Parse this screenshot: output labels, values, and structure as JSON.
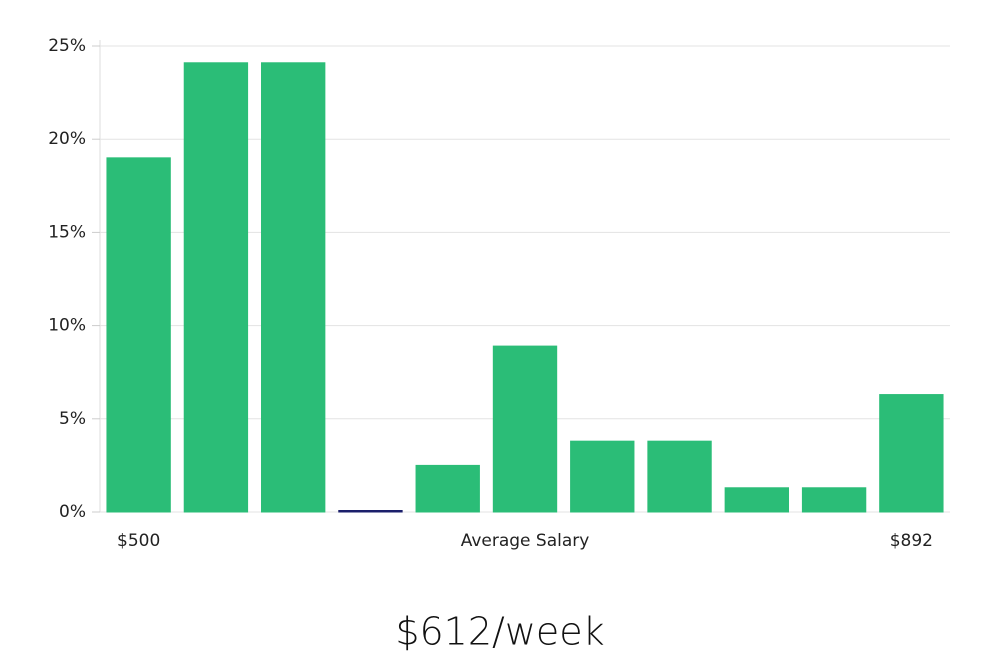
{
  "chart_data": {
    "type": "bar",
    "categories": [
      "$500",
      null,
      null,
      null,
      null,
      null,
      null,
      null,
      null,
      null,
      "$892"
    ],
    "values": [
      19,
      24.1,
      24.1,
      0,
      2.5,
      8.9,
      3.8,
      3.8,
      1.3,
      1.3,
      6.3
    ],
    "colors": [
      "#2bbd77",
      "#2bbd77",
      "#2bbd77",
      "#1b1f6b",
      "#2bbd77",
      "#2bbd77",
      "#2bbd77",
      "#2bbd77",
      "#2bbd77",
      "#2bbd77",
      "#2bbd77"
    ],
    "x_label": "Average Salary",
    "caption": "$612/week",
    "ylim": [
      0,
      25
    ],
    "yticks": [
      {
        "value": 0,
        "label": "0%"
      },
      {
        "value": 5,
        "label": "5%"
      },
      {
        "value": 10,
        "label": "10%"
      },
      {
        "value": 15,
        "label": "15%"
      },
      {
        "value": 20,
        "label": "20%"
      },
      {
        "value": 25,
        "label": "25%"
      }
    ],
    "grid": true
  }
}
